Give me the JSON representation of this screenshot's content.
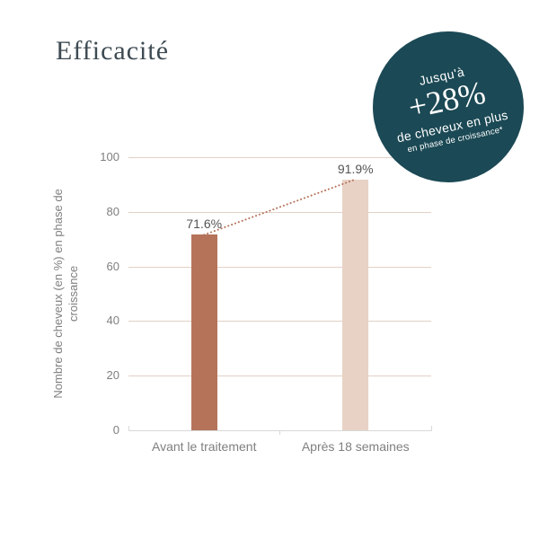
{
  "page": {
    "title": "Efficacité"
  },
  "badge": {
    "line1": "Jusqu'à",
    "line2": "+28%",
    "line3": "de cheveux en plus",
    "line4": "en phase de croissance*",
    "bg_color": "#1b4955",
    "text_color": "#ffffff"
  },
  "chart_data": {
    "type": "bar",
    "title": "Efficacité",
    "categories": [
      "Avant le traitement",
      "Après 18 semaines"
    ],
    "values": [
      71.6,
      91.9
    ],
    "value_labels": [
      "71.6%",
      "91.9%"
    ],
    "bar_colors": [
      "#b5735a",
      "#e8d2c5"
    ],
    "xlabel": "",
    "ylabel": "Nombre de cheveux (en %) en phase de croissance",
    "ylim": [
      0,
      100
    ],
    "yticks": [
      0,
      20,
      40,
      60,
      80,
      100
    ],
    "grid": true,
    "gridline_color": "#e3d0c5",
    "axis_color": "#d9d9d9",
    "legend": false,
    "trendline": {
      "style": "dotted",
      "color": "#b5735a",
      "connects_values": [
        71.6,
        91.9
      ]
    }
  }
}
